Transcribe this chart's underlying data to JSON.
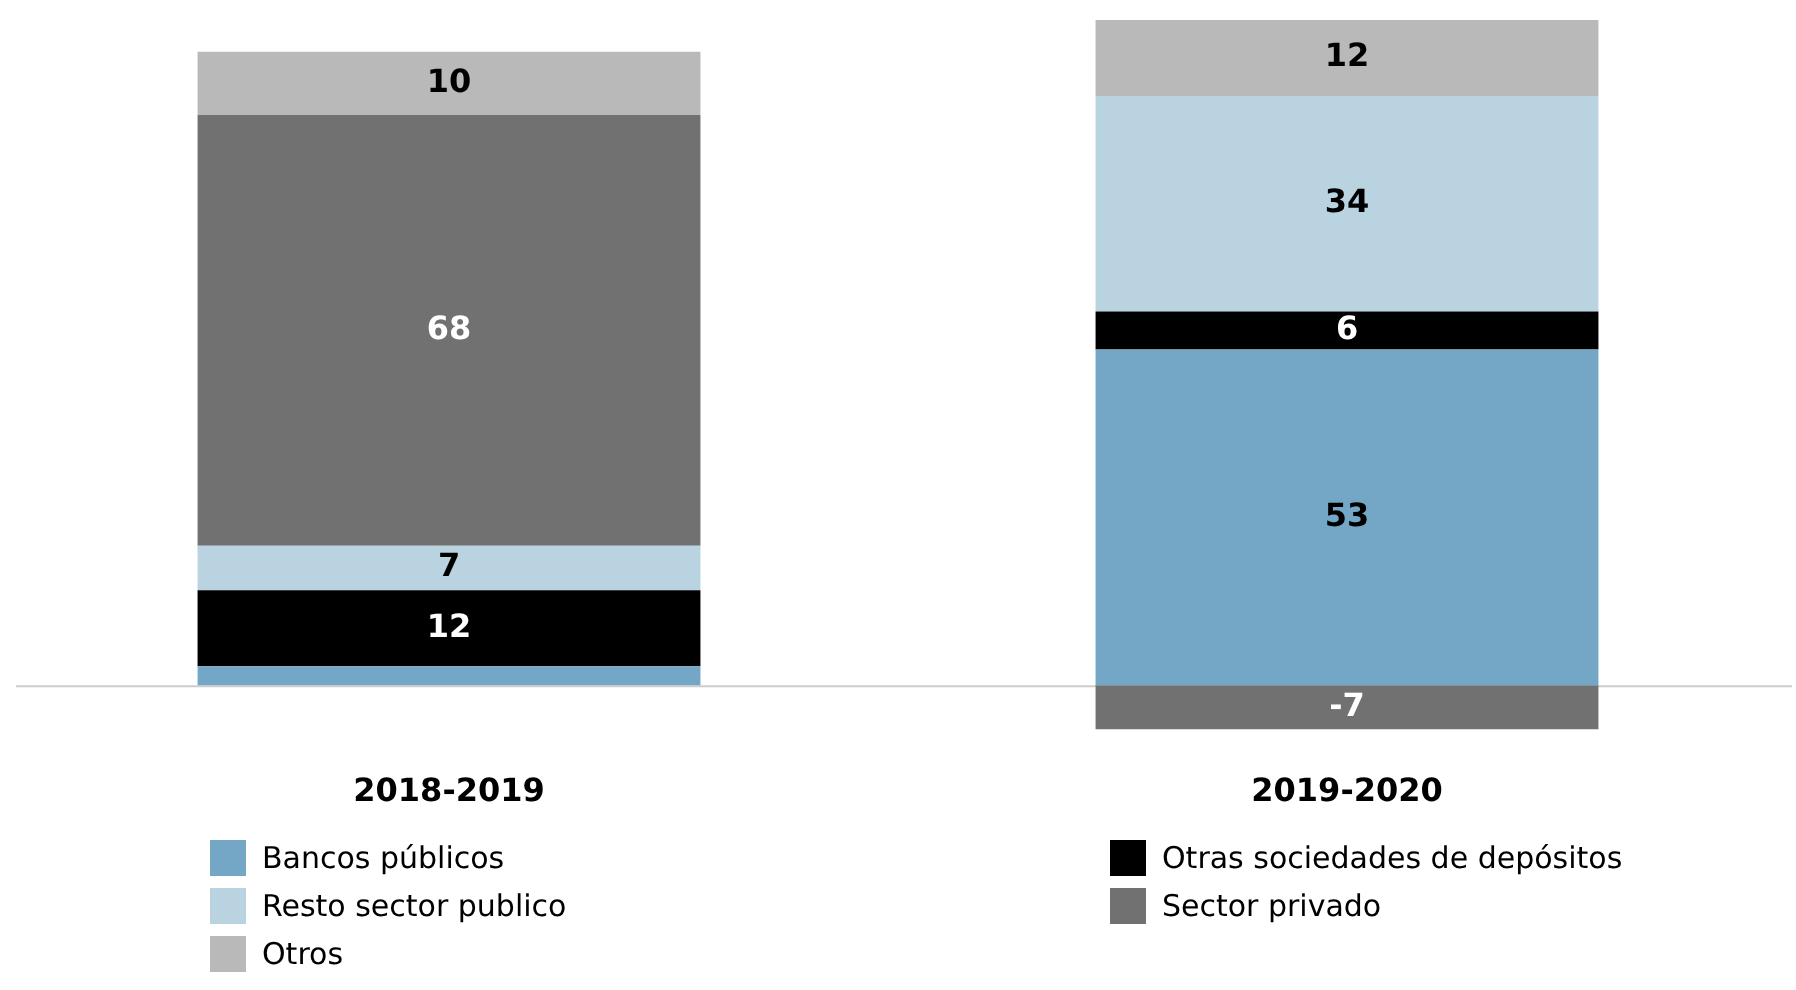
{
  "chart_data": {
    "type": "bar",
    "stacked": true,
    "categories": [
      "2018-2019",
      "2019-2020"
    ],
    "series": [
      {
        "name": "Bancos públicos",
        "color": "#74a7c5",
        "values": [
          3,
          53
        ],
        "value_labels": [
          null,
          "53"
        ]
      },
      {
        "name": "Otras sociedades de depósitos",
        "color": "#000000",
        "values": [
          12,
          6
        ],
        "value_labels": [
          "12",
          "6"
        ]
      },
      {
        "name": "Resto sector publico",
        "color": "#b9d3e0",
        "values": [
          7,
          34
        ],
        "value_labels": [
          "7",
          "34"
        ]
      },
      {
        "name": "Sector privado",
        "color": "#717171",
        "values": [
          68,
          -7
        ],
        "value_labels": [
          "68",
          "-7"
        ]
      },
      {
        "name": "Otros",
        "color": "#b9b9b9",
        "values": [
          10,
          12
        ],
        "value_labels": [
          "10",
          "12"
        ]
      }
    ],
    "legend": "bottom"
  }
}
